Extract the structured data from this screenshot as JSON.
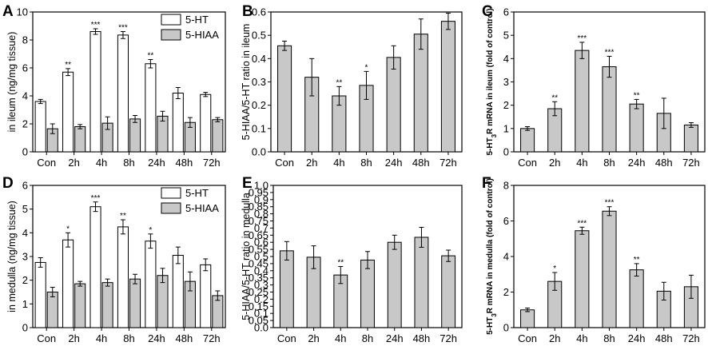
{
  "chart_data": [
    {
      "panel": "A",
      "type": "bar",
      "ylabel": "in ileum (ng/mg tissue)",
      "categories": [
        "Con",
        "2h",
        "4h",
        "8h",
        "24h",
        "48h",
        "72h"
      ],
      "ylim": [
        0,
        10
      ],
      "yticks": [
        0,
        2,
        4,
        6,
        8,
        10
      ],
      "legend": "top-right",
      "series": [
        {
          "name": "5-HT",
          "color": "#ffffff",
          "values": [
            3.6,
            5.7,
            8.6,
            8.35,
            6.3,
            4.2,
            4.1
          ],
          "errors": [
            0.15,
            0.25,
            0.2,
            0.25,
            0.3,
            0.4,
            0.15
          ],
          "sig": [
            "",
            "**",
            "***",
            "***",
            "**",
            "",
            ""
          ]
        },
        {
          "name": "5-HIAA",
          "color": "#c8c8c8",
          "values": [
            1.65,
            1.8,
            2.05,
            2.35,
            2.55,
            2.1,
            2.3
          ],
          "errors": [
            0.35,
            0.15,
            0.45,
            0.25,
            0.35,
            0.35,
            0.15
          ],
          "sig": [
            "",
            "",
            "",
            "",
            "",
            "",
            ""
          ]
        }
      ]
    },
    {
      "panel": "B",
      "type": "bar",
      "ylabel": "5-HIAA/5-HT ratio in ileum",
      "categories": [
        "Con",
        "2h",
        "4h",
        "8h",
        "24h",
        "48h",
        "72h"
      ],
      "ylim": [
        0,
        0.6
      ],
      "yticks": [
        0.0,
        0.1,
        0.2,
        0.3,
        0.4,
        0.5,
        0.6
      ],
      "tick_decimals": 1,
      "series": [
        {
          "name": "ratio",
          "color": "#c8c8c8",
          "values": [
            0.455,
            0.32,
            0.24,
            0.285,
            0.405,
            0.505,
            0.56
          ],
          "errors": [
            0.02,
            0.08,
            0.04,
            0.06,
            0.05,
            0.065,
            0.035
          ],
          "sig": [
            "",
            "",
            "**",
            "*",
            "",
            "",
            ""
          ]
        }
      ]
    },
    {
      "panel": "C",
      "type": "bar",
      "ylabel_prefix": "5-HT",
      "ylabel_sub": "3",
      "ylabel_suffix": "R mRNA in ileum (fold of control)",
      "categories": [
        "Con",
        "2h",
        "4h",
        "8h",
        "24h",
        "48h",
        "72h"
      ],
      "ylim": [
        0,
        6
      ],
      "yticks": [
        0,
        1,
        2,
        3,
        4,
        5,
        6
      ],
      "series": [
        {
          "name": "mRNA",
          "color": "#c8c8c8",
          "values": [
            1.0,
            1.85,
            4.35,
            3.65,
            2.05,
            1.65,
            1.15
          ],
          "errors": [
            0.08,
            0.3,
            0.35,
            0.45,
            0.2,
            0.65,
            0.1
          ],
          "sig": [
            "",
            "**",
            "***",
            "***",
            "**",
            "",
            ""
          ]
        }
      ]
    },
    {
      "panel": "D",
      "type": "bar",
      "ylabel": "in medulla (ng/mg tissue)",
      "categories": [
        "Con",
        "2h",
        "4h",
        "8h",
        "24h",
        "48h",
        "72h"
      ],
      "ylim": [
        0,
        6
      ],
      "yticks": [
        0,
        1,
        2,
        3,
        4,
        5,
        6
      ],
      "legend": "top-right",
      "series": [
        {
          "name": "5-HT",
          "color": "#ffffff",
          "values": [
            2.75,
            3.7,
            5.1,
            4.25,
            3.65,
            3.05,
            2.65
          ],
          "errors": [
            0.2,
            0.3,
            0.2,
            0.3,
            0.3,
            0.35,
            0.25
          ],
          "sig": [
            "",
            "*",
            "***",
            "**",
            "*",
            "",
            ""
          ]
        },
        {
          "name": "5-HIAA",
          "color": "#c8c8c8",
          "values": [
            1.5,
            1.85,
            1.9,
            2.05,
            2.2,
            1.95,
            1.35
          ],
          "errors": [
            0.2,
            0.1,
            0.15,
            0.2,
            0.3,
            0.4,
            0.2
          ],
          "sig": [
            "",
            "",
            "",
            "",
            "",
            "",
            ""
          ]
        }
      ]
    },
    {
      "panel": "E",
      "type": "bar",
      "ylabel": "5-HIAA/5-HT ratio in medulla",
      "categories": [
        "Con",
        "2h",
        "4h",
        "8h",
        "24h",
        "48h",
        "72h"
      ],
      "ylim": [
        0,
        1.0
      ],
      "yticks": [
        0.0,
        0.05,
        0.1,
        0.15,
        0.2,
        0.25,
        0.3,
        0.35,
        0.4,
        0.45,
        0.5,
        0.55,
        0.6,
        0.65,
        0.7,
        0.75,
        0.8,
        0.85,
        0.9,
        0.95,
        1.0
      ],
      "tick_decimals": 2,
      "tick_trim": true,
      "series": [
        {
          "name": "ratio",
          "color": "#c8c8c8",
          "values": [
            0.54,
            0.495,
            0.37,
            0.475,
            0.6,
            0.635,
            0.505
          ],
          "errors": [
            0.065,
            0.08,
            0.06,
            0.06,
            0.05,
            0.07,
            0.04
          ],
          "sig": [
            "",
            "",
            "**",
            "",
            "",
            "",
            ""
          ]
        }
      ]
    },
    {
      "panel": "F",
      "type": "bar",
      "ylabel_prefix": "5-HT",
      "ylabel_sub": "3",
      "ylabel_suffix": "R mRNA in medulla (fold of control)",
      "categories": [
        "Con",
        "2h",
        "4h",
        "8h",
        "24h",
        "48h",
        "72h"
      ],
      "ylim": [
        0,
        8
      ],
      "yticks": [
        0,
        2,
        4,
        6,
        8
      ],
      "series": [
        {
          "name": "mRNA",
          "color": "#c8c8c8",
          "values": [
            1.0,
            2.6,
            5.45,
            6.55,
            3.25,
            2.05,
            2.3
          ],
          "errors": [
            0.1,
            0.5,
            0.2,
            0.25,
            0.35,
            0.5,
            0.65
          ],
          "sig": [
            "",
            "*",
            "***",
            "***",
            "**",
            "",
            ""
          ]
        }
      ]
    }
  ]
}
